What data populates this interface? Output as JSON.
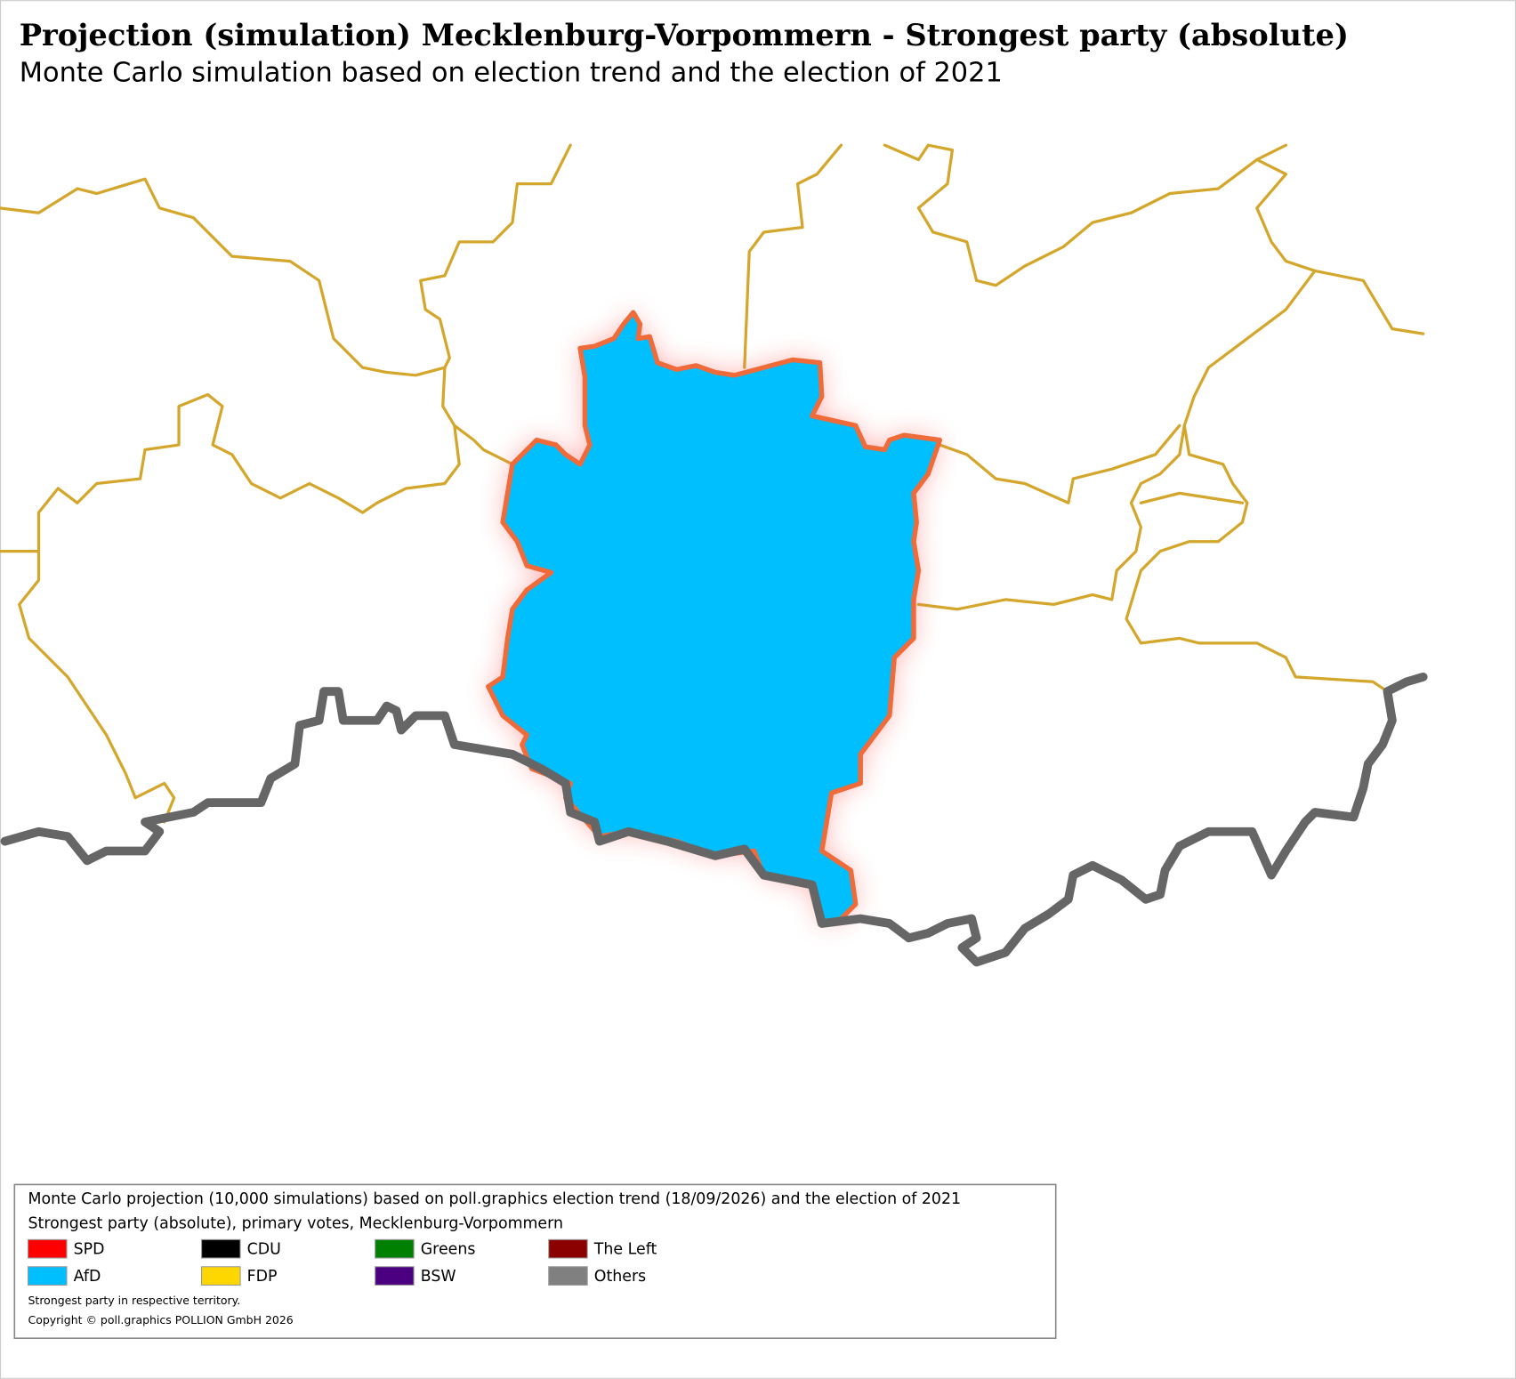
{
  "header": {
    "title": "Projection (simulation) Mecklenburg-Vorpommern - Strongest party (absolute)",
    "subtitle": "Monte Carlo simulation based on election trend and the election of 2021"
  },
  "legend": {
    "lines": [
      "Monte Carlo projection (10,000 simulations) based on poll.graphics election trend (18/09/2026) and the election of 2021",
      "Strongest party (absolute), primary votes, Mecklenburg-Vorpommern"
    ],
    "parties": [
      {
        "name": "SPD",
        "color": "#ff0000"
      },
      {
        "name": "CDU",
        "color": "#000000"
      },
      {
        "name": "Greens",
        "color": "#008000"
      },
      {
        "name": "The Left",
        "color": "#8b0000"
      },
      {
        "name": "AfD",
        "color": "#00bfff"
      },
      {
        "name": "FDP",
        "color": "#ffd700"
      },
      {
        "name": "BSW",
        "color": "#4b0082"
      },
      {
        "name": "Others",
        "color": "#808080"
      }
    ],
    "notes": [
      "Strongest party in respective territory.",
      "Copyright © poll.graphics POLLION GmbH 2026"
    ]
  }
}
